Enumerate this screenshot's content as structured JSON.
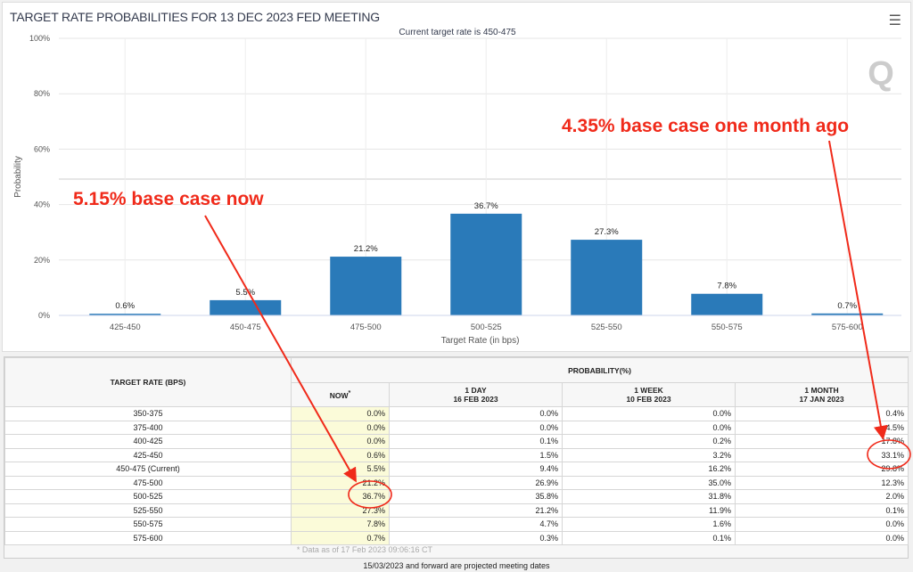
{
  "chart_data": {
    "type": "bar",
    "title": "TARGET RATE PROBABILITIES FOR 13 DEC 2023 FED MEETING",
    "subtitle": "Current target rate is 450-475",
    "xlabel": "Target Rate (in bps)",
    "ylabel": "Probability",
    "categories": [
      "425-450",
      "450-475",
      "475-500",
      "500-525",
      "525-550",
      "550-575",
      "575-600"
    ],
    "values": [
      0.6,
      5.5,
      21.2,
      36.7,
      27.3,
      7.8,
      0.7
    ],
    "data_labels": [
      "0.6%",
      "5.5%",
      "21.2%",
      "36.7%",
      "27.3%",
      "7.8%",
      "0.7%"
    ],
    "ylim": [
      0,
      100
    ],
    "yticks": [
      "0%",
      "20%",
      "40%",
      "60%",
      "80%",
      "100%"
    ],
    "grid": true,
    "bar_color": "#2a7ab9"
  },
  "menu_icon": "hamburger-icon",
  "watermark": "Q",
  "table": {
    "rate_header": "TARGET RATE (BPS)",
    "prob_header": "PROBABILITY(%)",
    "columns": [
      {
        "line1": "NOW",
        "line2": "",
        "marker": "*"
      },
      {
        "line1": "1 DAY",
        "line2": "16 FEB 2023"
      },
      {
        "line1": "1 WEEK",
        "line2": "10 FEB 2023"
      },
      {
        "line1": "1 MONTH",
        "line2": "17 JAN 2023"
      }
    ],
    "rows": [
      {
        "rate": "350-375",
        "values": [
          "0.0%",
          "0.0%",
          "0.0%",
          "0.4%"
        ]
      },
      {
        "rate": "375-400",
        "values": [
          "0.0%",
          "0.0%",
          "0.0%",
          "4.5%"
        ]
      },
      {
        "rate": "400-425",
        "values": [
          "0.0%",
          "0.1%",
          "0.2%",
          "17.8%"
        ]
      },
      {
        "rate": "425-450",
        "values": [
          "0.6%",
          "1.5%",
          "3.2%",
          "33.1%"
        ]
      },
      {
        "rate": "450-475 (Current)",
        "values": [
          "5.5%",
          "9.4%",
          "16.2%",
          "29.8%"
        ]
      },
      {
        "rate": "475-500",
        "values": [
          "21.2%",
          "26.9%",
          "35.0%",
          "12.3%"
        ]
      },
      {
        "rate": "500-525",
        "values": [
          "36.7%",
          "35.8%",
          "31.8%",
          "2.0%"
        ]
      },
      {
        "rate": "525-550",
        "values": [
          "27.3%",
          "21.2%",
          "11.9%",
          "0.1%"
        ]
      },
      {
        "rate": "550-575",
        "values": [
          "7.8%",
          "4.7%",
          "1.6%",
          "0.0%"
        ]
      },
      {
        "rate": "575-600",
        "values": [
          "0.7%",
          "0.3%",
          "0.1%",
          "0.0%"
        ]
      }
    ],
    "as_of": "* Data as of 17 Feb 2023 09:06:16 CT"
  },
  "footnote": "15/03/2023 and forward are projected meeting dates",
  "annotations": {
    "now": "5.15% base case now",
    "month": "4.35% base case one month ago",
    "color": "#f02a1a"
  }
}
